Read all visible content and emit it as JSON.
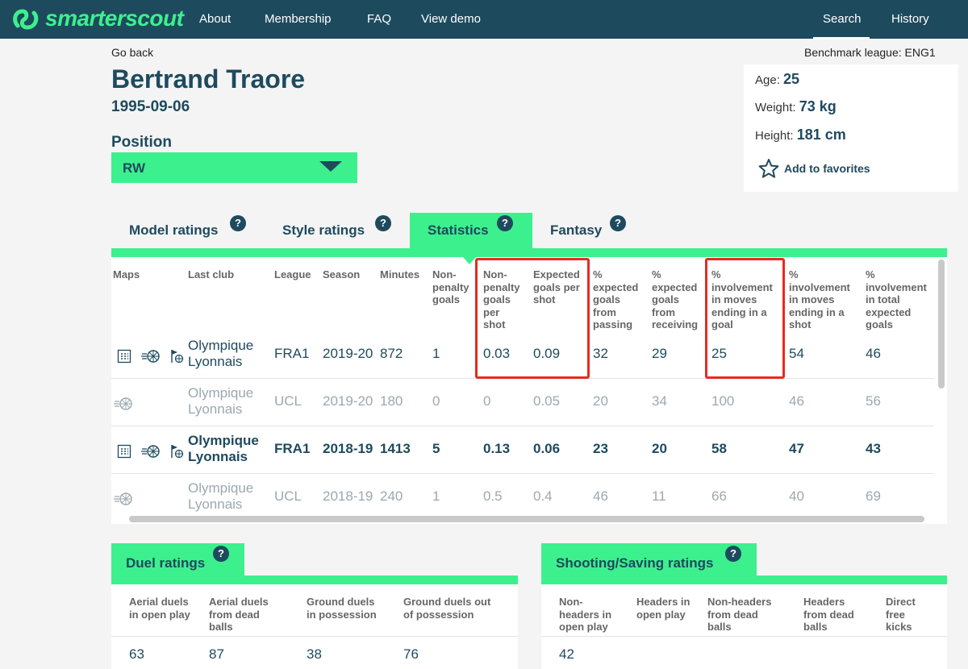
{
  "nav": {
    "brand": "smarterscout",
    "links": [
      "About",
      "Membership",
      "FAQ",
      "View demo"
    ],
    "search": "Search",
    "history": "History"
  },
  "header": {
    "go_back": "Go back",
    "benchmark": "Benchmark league: ENG1",
    "player_name": "Bertrand Traore",
    "dob": "1995-09-06",
    "position_label": "Position",
    "position_value": "RW"
  },
  "info": {
    "age_label": "Age:",
    "age": "25",
    "weight_label": "Weight:",
    "weight": "73 kg",
    "height_label": "Height:",
    "height": "181 cm",
    "favorites": "Add to favorites"
  },
  "tabs": [
    {
      "label": "Model ratings",
      "active": false
    },
    {
      "label": "Style ratings",
      "active": false
    },
    {
      "label": "Statistics",
      "active": true
    },
    {
      "label": "Fantasy",
      "active": false
    }
  ],
  "help_glyph": "?",
  "stats": {
    "headers": [
      "Maps",
      "Last club",
      "League",
      "Season",
      "Minutes",
      "Non-\npenalty\ngoals",
      "Non-\npenalty\ngoals\nper\nshot",
      "Expected\ngoals per\nshot",
      "%\nexpected\ngoals\nfrom\npassing",
      "%\nexpected\ngoals\nfrom\nreceiving",
      "%\ninvolvement\nin moves\nending in a\ngoal",
      "%\ninvolvement\nin moves\nending in a\nshot",
      "%\ninvolvement\nin total\nexpected\ngoals"
    ],
    "rows": [
      {
        "club": "Olympique\nLyonnais",
        "league": "FRA1",
        "season": "2019-20",
        "minutes": "872",
        "npg": "1",
        "npg_shot": "0.03",
        "xg_shot": "0.09",
        "xg_pass": "32",
        "xg_recv": "29",
        "inv_goal": "25",
        "inv_shot": "54",
        "inv_xg": "46"
      },
      {
        "club": "Olympique\nLyonnais",
        "league": "UCL",
        "season": "2019-20",
        "minutes": "180",
        "npg": "0",
        "npg_shot": "0",
        "xg_shot": "0.05",
        "xg_pass": "20",
        "xg_recv": "34",
        "inv_goal": "100",
        "inv_shot": "46",
        "inv_xg": "56"
      },
      {
        "club": "Olympique\nLyonnais",
        "league": "FRA1",
        "season": "2018-19",
        "minutes": "1413",
        "npg": "5",
        "npg_shot": "0.13",
        "xg_shot": "0.06",
        "xg_pass": "23",
        "xg_recv": "20",
        "inv_goal": "58",
        "inv_shot": "47",
        "inv_xg": "43"
      },
      {
        "club": "Olympique\nLyonnais",
        "league": "UCL",
        "season": "2018-19",
        "minutes": "240",
        "npg": "1",
        "npg_shot": "0.5",
        "xg_shot": "0.4",
        "xg_pass": "46",
        "xg_recv": "11",
        "inv_goal": "66",
        "inv_shot": "40",
        "inv_xg": "69"
      }
    ]
  },
  "duel": {
    "title": "Duel ratings",
    "headers": [
      "Aerial duels\nin open play",
      "Aerial duels\nfrom dead\nballs",
      "Ground duels\nin possession",
      "Ground duels out\nof possession"
    ],
    "values": [
      "63",
      "87",
      "38",
      "76"
    ]
  },
  "shooting": {
    "title": "Shooting/Saving ratings",
    "headers": [
      "Non-\nheaders in\nopen play",
      "Headers in\nopen play",
      "Non-headers\nfrom dead\nballs",
      "Headers\nfrom dead\nballs",
      "Direct\nfree\nkicks"
    ],
    "values": [
      "42"
    ]
  },
  "colors": {
    "navy": "#1e4a5e",
    "accent": "#3df08e",
    "highlight": "#e52b20"
  }
}
